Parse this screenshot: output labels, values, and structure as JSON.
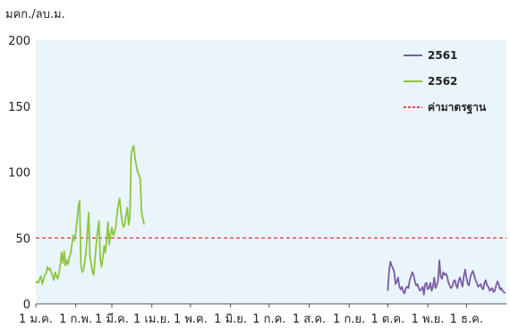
{
  "chart_data": {
    "type": "line",
    "ylabel": "มคก./ลบ.ม.",
    "ylim": [
      0,
      200
    ],
    "yticks": [
      0,
      50,
      100,
      150,
      200
    ],
    "xlim": [
      0,
      365
    ],
    "x_tick_labels": [
      {
        "label": "1 ม.ค.",
        "day": 0
      },
      {
        "label": "1 ก.พ.",
        "day": 31
      },
      {
        "label": "1 มี.ค.",
        "day": 59
      },
      {
        "label": "1 เม.ย.",
        "day": 90
      },
      {
        "label": "1 พ.ค.",
        "day": 120
      },
      {
        "label": "1 มิ.ย.",
        "day": 151
      },
      {
        "label": "1 ก.ค.",
        "day": 181
      },
      {
        "label": "1 ส.ค.",
        "day": 212
      },
      {
        "label": "1 ก.ย.",
        "day": 243
      },
      {
        "label": "1 ต.ค.",
        "day": 273
      },
      {
        "label": "1 พ.ย.",
        "day": 304
      },
      {
        "label": "1 ธ.ค.",
        "day": 334
      }
    ],
    "legend_position": "top-right",
    "standard": {
      "name": "ค่ามาตรฐาน",
      "value": 50,
      "color": "#e03030"
    },
    "series": [
      {
        "name": "2561",
        "color": "#7b5aa6",
        "x": [
          273,
          274,
          275,
          276,
          277,
          278,
          279,
          280,
          281,
          282,
          283,
          284,
          285,
          286,
          287,
          288,
          289,
          290,
          291,
          292,
          293,
          294,
          295,
          296,
          297,
          298,
          299,
          300,
          301,
          302,
          303,
          304,
          305,
          306,
          307,
          308,
          309,
          310,
          311,
          312,
          313,
          314,
          315,
          316,
          317,
          318,
          319,
          320,
          321,
          322,
          323,
          324,
          325,
          326,
          327,
          328,
          329,
          330,
          331,
          332,
          333,
          334,
          335,
          336,
          337,
          338,
          339,
          340,
          341,
          342,
          343,
          344,
          345,
          346,
          347,
          348,
          349,
          350,
          351,
          352,
          353,
          354,
          355,
          356,
          357,
          358,
          359,
          360,
          361,
          362,
          363,
          364
        ],
        "values": [
          10,
          25,
          32,
          29,
          27,
          24,
          15,
          17,
          20,
          13,
          11,
          13,
          9,
          8,
          12,
          13,
          12,
          18,
          21,
          24,
          22,
          17,
          14,
          15,
          12,
          10,
          11,
          13,
          7,
          15,
          16,
          11,
          12,
          16,
          10,
          13,
          20,
          12,
          14,
          18,
          33,
          21,
          19,
          24,
          22,
          23,
          21,
          16,
          14,
          12,
          13,
          17,
          18,
          14,
          12,
          18,
          20,
          16,
          13,
          21,
          26,
          20,
          15,
          14,
          20,
          23,
          25,
          22,
          18,
          16,
          13,
          14,
          15,
          12,
          11,
          16,
          18,
          14,
          13,
          10,
          11,
          12,
          9,
          10,
          14,
          17,
          15,
          11,
          12,
          10,
          9,
          8
        ]
      },
      {
        "name": "2562",
        "color": "#8cc63f",
        "x": [
          0,
          1,
          2,
          3,
          4,
          5,
          6,
          7,
          8,
          9,
          10,
          11,
          12,
          13,
          14,
          15,
          16,
          17,
          18,
          19,
          20,
          21,
          22,
          23,
          24,
          25,
          26,
          27,
          28,
          29,
          30,
          31,
          32,
          33,
          34,
          35,
          36,
          37,
          38,
          39,
          40,
          41,
          42,
          43,
          44,
          45,
          46,
          47,
          48,
          49,
          50,
          51,
          52,
          53,
          54,
          55,
          56,
          57,
          58,
          59,
          60,
          61,
          62,
          63,
          64,
          65,
          66,
          67,
          68,
          69,
          70,
          71,
          72,
          73,
          74,
          75,
          76,
          77,
          78,
          79,
          80,
          81,
          82,
          83,
          84
        ],
        "values": [
          16,
          17,
          16,
          19,
          21,
          15,
          18,
          22,
          23,
          28,
          26,
          27,
          24,
          21,
          18,
          24,
          21,
          19,
          23,
          30,
          39,
          31,
          40,
          29,
          33,
          30,
          35,
          38,
          45,
          52,
          48,
          54,
          63,
          74,
          78,
          30,
          24,
          26,
          32,
          40,
          55,
          69,
          37,
          30,
          24,
          22,
          35,
          46,
          56,
          63,
          34,
          28,
          35,
          44,
          39,
          50,
          62,
          45,
          53,
          58,
          52,
          54,
          58,
          68,
          75,
          80,
          70,
          62,
          58,
          60,
          68,
          73,
          60,
          65,
          113,
          118,
          120,
          110,
          105,
          100,
          98,
          95,
          70,
          65,
          60
        ]
      }
    ]
  }
}
